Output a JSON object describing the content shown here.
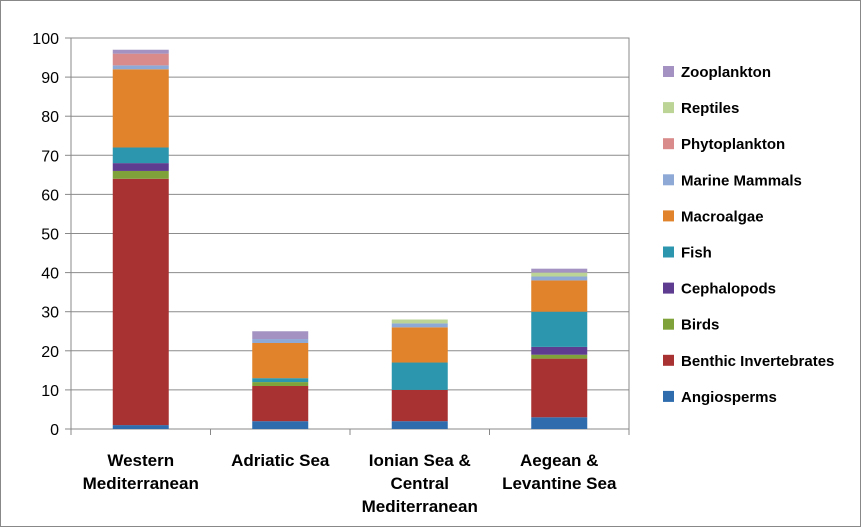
{
  "chart_data": {
    "type": "bar",
    "stacked": true,
    "categories": [
      [
        "Western",
        "Mediterranean"
      ],
      [
        "Adriatic Sea"
      ],
      [
        "Ionian Sea &",
        "Central",
        "Mediterranean"
      ],
      [
        "Aegean &",
        "Levantine Sea"
      ]
    ],
    "ylim": [
      0,
      100
    ],
    "yticks": [
      0,
      10,
      20,
      30,
      40,
      50,
      60,
      70,
      80,
      90,
      100
    ],
    "grid": true,
    "legend_placement": "right",
    "series": [
      {
        "name": "Angiosperms",
        "color": "#2e6cae",
        "values": [
          1,
          2,
          2,
          3
        ]
      },
      {
        "name": "Benthic Invertebrates",
        "color": "#a83232",
        "values": [
          63,
          9,
          8,
          15
        ]
      },
      {
        "name": "Birds",
        "color": "#7fa33a",
        "values": [
          2,
          1,
          0,
          1
        ]
      },
      {
        "name": "Cephalopods",
        "color": "#5e3c8f",
        "values": [
          2,
          0,
          0,
          2
        ]
      },
      {
        "name": "Fish",
        "color": "#2b96ad",
        "values": [
          4,
          1,
          7,
          9
        ]
      },
      {
        "name": "Macroalgae",
        "color": "#e0832a",
        "values": [
          20,
          9,
          9,
          8
        ]
      },
      {
        "name": "Marine Mammals",
        "color": "#8fa9d6",
        "values": [
          1,
          1,
          1,
          1
        ]
      },
      {
        "name": "Phytoplankton",
        "color": "#d98a8a",
        "values": [
          3,
          0,
          0,
          0
        ]
      },
      {
        "name": "Reptiles",
        "color": "#bcd597",
        "values": [
          0,
          0,
          1,
          1
        ]
      },
      {
        "name": "Zooplankton",
        "color": "#a493c2",
        "values": [
          1,
          2,
          0,
          1
        ]
      }
    ]
  }
}
